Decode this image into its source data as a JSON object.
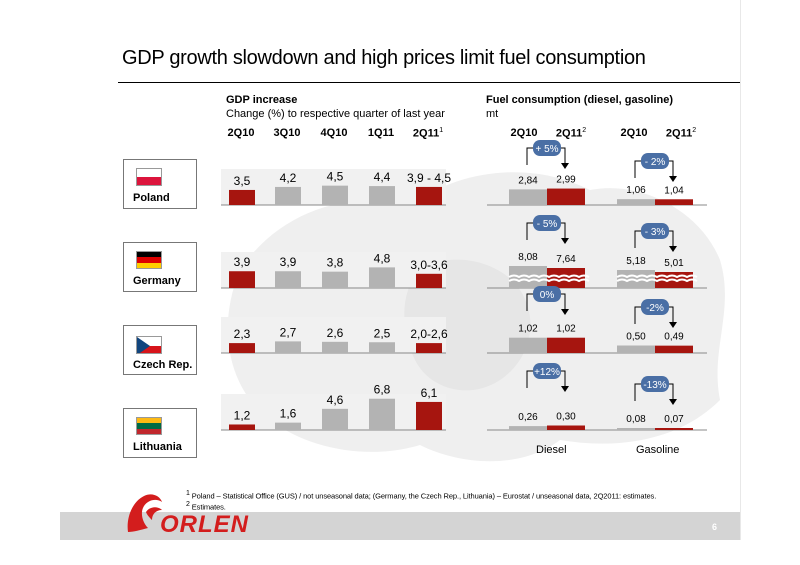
{
  "title": "GDP growth slowdown and high prices limit fuel consumption",
  "gdp": {
    "heading": "GDP increase",
    "subheading": "Change (%) to respective quarter of last year",
    "columns": [
      "2Q10",
      "3Q10",
      "4Q10",
      "1Q11",
      "2Q11"
    ],
    "last_col_sup": "1"
  },
  "fuel": {
    "heading": "Fuel consumption (diesel, gasoline)",
    "unit": "mt",
    "diesel_cols": [
      "2Q10",
      "2Q11"
    ],
    "gasoline_cols": [
      "2Q10",
      "2Q11"
    ],
    "col_sup": "2",
    "diesel_label": "Diesel",
    "gasoline_label": "Gasoline"
  },
  "countries": [
    {
      "name": "Poland",
      "flag": [
        "#ffffff",
        "#dc143c"
      ]
    },
    {
      "name": "Germany",
      "flag": [
        "#000000",
        "#dd0000",
        "#ffce00"
      ]
    },
    {
      "name": "Czech Rep.",
      "flag": [
        "#ffffff",
        "#d7141a",
        "#11457e"
      ]
    },
    {
      "name": "Lithuania",
      "flag": [
        "#fdb913",
        "#006a44",
        "#c1272d"
      ]
    }
  ],
  "chart_data": [
    {
      "type": "bar",
      "title": "GDP increase",
      "subtitle": "Change (%) to respective quarter of last year",
      "categories": [
        "2Q10",
        "3Q10",
        "4Q10",
        "1Q11",
        "2Q11"
      ],
      "series": [
        {
          "name": "Poland",
          "values": [
            3.5,
            4.2,
            4.5,
            4.4,
            4.2
          ],
          "labels": [
            "3,5",
            "4,2",
            "4,5",
            "4,4",
            "3,9 - 4,5"
          ]
        },
        {
          "name": "Germany",
          "values": [
            3.9,
            3.9,
            3.8,
            4.8,
            3.3
          ],
          "labels": [
            "3,9",
            "3,9",
            "3,8",
            "4,8",
            "3,0-3,6"
          ]
        },
        {
          "name": "Czech Rep.",
          "values": [
            2.3,
            2.7,
            2.6,
            2.5,
            2.3
          ],
          "labels": [
            "2,3",
            "2,7",
            "2,6",
            "2,5",
            "2,0-2,6"
          ]
        },
        {
          "name": "Lithuania",
          "values": [
            1.2,
            1.6,
            4.6,
            6.8,
            6.1
          ],
          "labels": [
            "1,2",
            "1,6",
            "4,6",
            "6,8",
            "6,1"
          ]
        }
      ],
      "colors": {
        "actual": "#a6150f",
        "history": "#b3b3b3"
      }
    },
    {
      "type": "bar",
      "title": "Fuel consumption (diesel, gasoline)",
      "ylabel": "mt",
      "categories": [
        "2Q10",
        "2Q11"
      ],
      "series": [
        {
          "name": "Poland",
          "diesel": [
            2.84,
            2.99
          ],
          "diesel_labels": [
            "2,84",
            "2,99"
          ],
          "diesel_change": "+ 5%",
          "gasoline": [
            1.06,
            1.04
          ],
          "gasoline_labels": [
            "1,06",
            "1,04"
          ],
          "gasoline_change": "- 2%"
        },
        {
          "name": "Germany",
          "diesel": [
            8.08,
            7.64
          ],
          "diesel_labels": [
            "8,08",
            "7,64"
          ],
          "diesel_change": "- 5%",
          "gasoline": [
            5.18,
            5.01
          ],
          "gasoline_labels": [
            "5,18",
            "5,01"
          ],
          "gasoline_change": "- 3%"
        },
        {
          "name": "Czech Rep.",
          "diesel": [
            1.02,
            1.02
          ],
          "diesel_labels": [
            "1,02",
            "1,02"
          ],
          "diesel_change": "0%",
          "gasoline": [
            0.5,
            0.49
          ],
          "gasoline_labels": [
            "0,50",
            "0,49"
          ],
          "gasoline_change": "-2%"
        },
        {
          "name": "Lithuania",
          "diesel": [
            0.26,
            0.3
          ],
          "diesel_labels": [
            "0,26",
            "0,30"
          ],
          "diesel_change": "+12%",
          "gasoline": [
            0.08,
            0.07
          ],
          "gasoline_labels": [
            "0,08",
            "0,07"
          ],
          "gasoline_change": "-13%"
        }
      ],
      "colors": {
        "badge": "#4a6fa5"
      }
    }
  ],
  "footnotes": [
    {
      "sup": "1",
      "text": "Poland – Statistical Office (GUS) / not unseasonal data; (Germany, the Czech Rep., Lithuania) – Eurostat / unseasonal data, 2Q2011: estimates."
    },
    {
      "sup": "2",
      "text": "Estimates."
    }
  ],
  "logo": "ORLEN",
  "page_number": "6"
}
